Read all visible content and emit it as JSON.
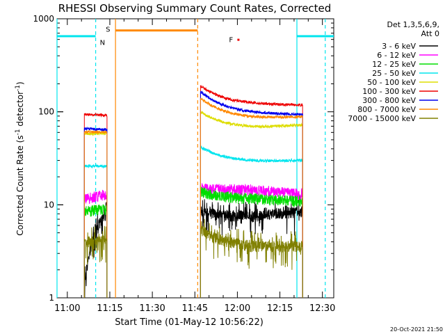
{
  "chart_data": {
    "type": "line",
    "title": "RHESSI Observing Summary Count Rates, Corrected",
    "xlabel": "Start Time (01-May-12 10:56:22)",
    "ylabel_main": "Corrected Count Rate (s",
    "ylabel_sup1": "-1",
    "ylabel_mid": " detector",
    "ylabel_sup2": "-1",
    "ylabel_end": ")",
    "yscale": "log",
    "ylim": [
      1,
      1000
    ],
    "xlim": [
      "10:56:22",
      "12:34:00"
    ],
    "x_ticks": [
      "11:00",
      "11:15",
      "11:30",
      "11:45",
      "12:00",
      "12:15",
      "12:30"
    ],
    "y_ticks": [
      "1",
      "10",
      "100",
      "1000"
    ],
    "legend": {
      "header1": "Det 1,3,5,6,9,",
      "header2": "Att 0",
      "entries": [
        {
          "label": "3 - 6 keV",
          "color": "#000000"
        },
        {
          "label": "6 - 12 keV",
          "color": "#ff00ff"
        },
        {
          "label": "12 - 25 keV",
          "color": "#00dd00"
        },
        {
          "label": "25 - 50 keV",
          "color": "#00e5ee"
        },
        {
          "label": "50 - 100 keV",
          "color": "#dddd00"
        },
        {
          "label": "100 - 300 keV",
          "color": "#ee0000"
        },
        {
          "label": "300 - 800 keV",
          "color": "#0000ee"
        },
        {
          "label": "800 - 7000 keV",
          "color": "#ff8800"
        },
        {
          "label": "7000 - 15000 keV",
          "color": "#808000"
        }
      ]
    },
    "annotations": [
      {
        "text": "N",
        "x": "11:10",
        "color": "#00e5ee"
      },
      {
        "text": "S",
        "x": "11:17",
        "color": "#ff8800"
      },
      {
        "text": "F",
        "x": "12:00",
        "color": "#ee0000"
      }
    ],
    "segments": [
      {
        "start": "11:06",
        "end": "11:14"
      },
      {
        "start": "11:47",
        "end": "12:23"
      }
    ],
    "series": [
      {
        "name": "3 - 6 keV",
        "color": "#000000",
        "seg1": [
          1.3,
          8.5
        ],
        "seg2": [
          8.5,
          7.5,
          8.5
        ]
      },
      {
        "name": "6 - 12 keV",
        "color": "#ff00ff",
        "seg1": [
          11.5,
          13
        ],
        "seg2": [
          15,
          14.5,
          13
        ]
      },
      {
        "name": "12 - 25 keV",
        "color": "#00dd00",
        "seg1": [
          8.5,
          9
        ],
        "seg2": [
          14,
          11.5,
          11
        ]
      },
      {
        "name": "25 - 50 keV",
        "color": "#00e5ee",
        "seg1": [
          26,
          26
        ],
        "seg2": [
          42,
          29,
          30
        ]
      },
      {
        "name": "50 - 100 keV",
        "color": "#dddd00",
        "seg1": [
          58,
          58
        ],
        "seg2": [
          100,
          67,
          72
        ]
      },
      {
        "name": "100 - 300 keV",
        "color": "#ee0000",
        "seg1": [
          94,
          92
        ],
        "seg2": [
          190,
          120,
          118
        ]
      },
      {
        "name": "300 - 800 keV",
        "color": "#0000ee",
        "seg1": [
          66,
          64
        ],
        "seg2": [
          165,
          95,
          93
        ]
      },
      {
        "name": "800 - 7000 keV",
        "color": "#ff8800",
        "seg1": [
          61,
          60
        ],
        "seg2": [
          140,
          85,
          88
        ]
      },
      {
        "name": "7000 - 15000 keV",
        "color": "#808000",
        "seg1": [
          4.0,
          4.2
        ],
        "seg2": [
          5.5,
          3.5,
          3.6
        ]
      }
    ],
    "bars": [
      {
        "name": "day-bar-1",
        "color": "#00e5ee",
        "start": "10:56:22",
        "end": "11:10",
        "level": 650
      },
      {
        "name": "night-bar",
        "color": "#ff8800",
        "start": "11:17",
        "end": "11:46",
        "level": 750
      },
      {
        "name": "day-bar-2",
        "color": "#00e5ee",
        "start": "12:21",
        "end": "12:34",
        "level": 650
      }
    ],
    "vlines": [
      {
        "x": "10:56:22",
        "color": "#00e5ee",
        "style": "solid"
      },
      {
        "x": "11:10",
        "color": "#00e5ee",
        "style": "dashed"
      },
      {
        "x": "11:17",
        "color": "#ff8800",
        "style": "solid"
      },
      {
        "x": "11:46",
        "color": "#ff8800",
        "style": "dashed"
      },
      {
        "x": "12:21",
        "color": "#00e5ee",
        "style": "solid"
      },
      {
        "x": "12:31",
        "color": "#00e5ee",
        "style": "dashed"
      }
    ]
  },
  "footer": {
    "timestamp": "20-Oct-2021 21:50"
  }
}
